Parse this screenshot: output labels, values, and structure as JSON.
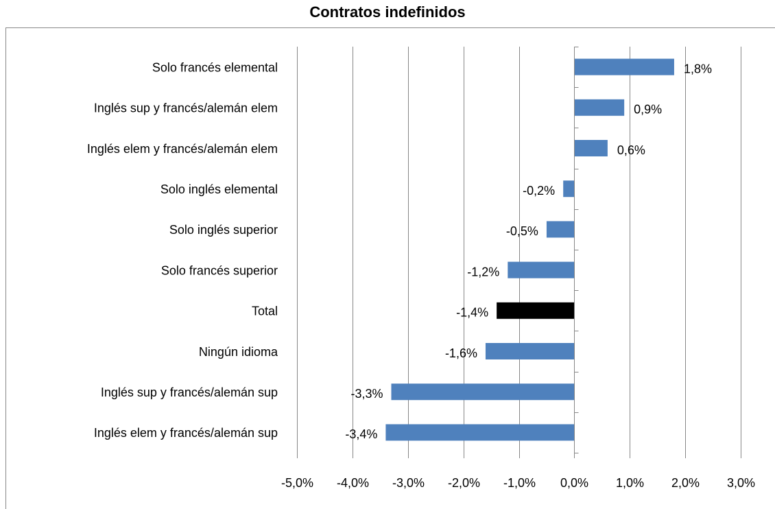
{
  "chart_data": {
    "type": "barh",
    "title": "Contratos indefinidos",
    "categories": [
      "Solo francés elemental",
      "Inglés sup y francés/alemán elem",
      "Inglés elem y francés/alemán elem",
      "Solo inglés elemental",
      "Solo inglés superior",
      "Solo francés superior",
      "Total",
      "Ningún idioma",
      "Inglés sup y francés/alemán sup",
      "Inglés elem y francés/alemán sup"
    ],
    "values": [
      1.8,
      0.9,
      0.6,
      -0.2,
      -0.5,
      -1.2,
      -1.4,
      -1.6,
      -3.3,
      -3.4
    ],
    "value_labels": [
      "1,8%",
      "0,9%",
      "0,6%",
      "-0,2%",
      "-0,5%",
      "-1,2%",
      "-1,4%",
      "-1,6%",
      "-3,3%",
      "-3,4%"
    ],
    "colors": [
      "#4f81bd",
      "#4f81bd",
      "#4f81bd",
      "#4f81bd",
      "#4f81bd",
      "#4f81bd",
      "#000000",
      "#4f81bd",
      "#4f81bd",
      "#4f81bd"
    ],
    "xlim": [
      -5,
      3
    ],
    "xticks": [
      {
        "value": -5,
        "label": "-5,0%"
      },
      {
        "value": -4,
        "label": "-4,0%"
      },
      {
        "value": -3,
        "label": "-3,0%"
      },
      {
        "value": -2,
        "label": "-2,0%"
      },
      {
        "value": -1,
        "label": "-1,0%"
      },
      {
        "value": 0,
        "label": "0,0%"
      },
      {
        "value": 1,
        "label": "1,0%"
      },
      {
        "value": 2,
        "label": "2,0%"
      },
      {
        "value": 3,
        "label": "3,0%"
      }
    ],
    "grid": true
  }
}
